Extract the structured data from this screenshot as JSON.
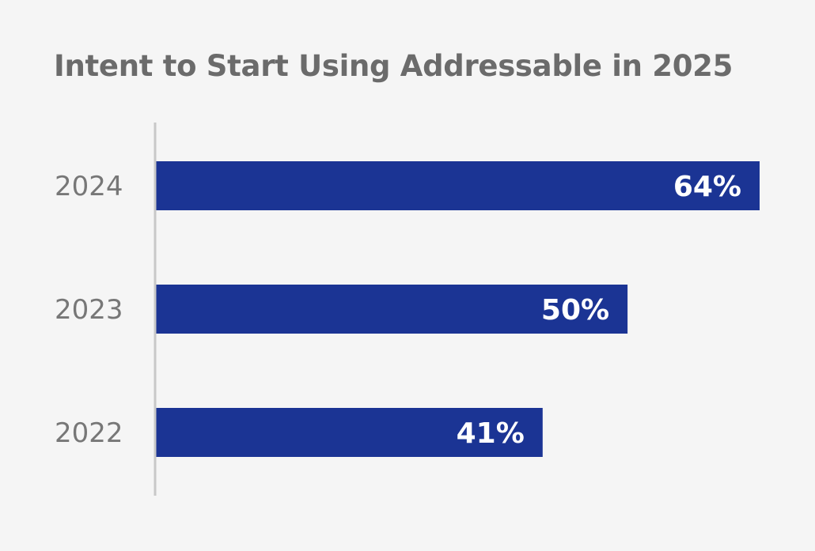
{
  "chart_data": {
    "type": "bar",
    "orientation": "horizontal",
    "title": "Intent to Start Using Addressable in 2025",
    "categories": [
      "2024",
      "2023",
      "2022"
    ],
    "values": [
      64,
      50,
      41
    ],
    "data_labels": [
      "64%",
      "50%",
      "41%"
    ],
    "unit": "%",
    "xlim": [
      0,
      64
    ],
    "grid": false,
    "legend": "none",
    "bar_color": "#1b3494",
    "label_color": "#ffffff",
    "title_color": "#6b6b6b",
    "tick_color": "#777777",
    "axis_color": "#c8c8c8",
    "background_color": "#f5f5f5"
  }
}
